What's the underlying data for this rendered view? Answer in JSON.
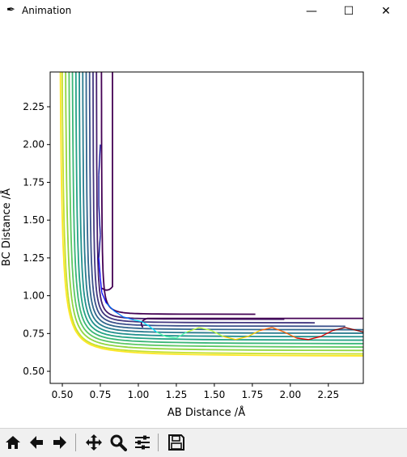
{
  "window": {
    "title": "Animation"
  },
  "titlebar": {
    "minimize_glyph": "—",
    "maximize_glyph": "☐",
    "close_glyph": "✕"
  },
  "toolbar": {
    "buttons": [
      {
        "name": "home-icon"
      },
      {
        "name": "back-arrow-icon"
      },
      {
        "name": "forward-arrow-icon"
      },
      {
        "name": "pan-icon"
      },
      {
        "name": "zoom-icon"
      },
      {
        "name": "subplots-configure-icon"
      },
      {
        "name": "save-icon"
      }
    ]
  },
  "chart_data": {
    "type": "contour",
    "xlabel": "AB Distance /Å",
    "ylabel": "BC Distance /Å",
    "xlim": [
      0.42,
      2.48
    ],
    "ylim": [
      0.42,
      2.48
    ],
    "x_ticks": [
      0.5,
      0.75,
      1.0,
      1.25,
      1.5,
      1.75,
      2.0,
      2.25
    ],
    "x_tick_labels": [
      "0.50",
      "0.75",
      "1.00",
      "1.25",
      "1.50",
      "1.75",
      "2.00",
      "2.25"
    ],
    "y_ticks": [
      0.5,
      0.75,
      1.0,
      1.25,
      1.5,
      1.75,
      2.0,
      2.25
    ],
    "y_tick_labels": [
      "0.50",
      "0.75",
      "1.00",
      "1.25",
      "1.50",
      "1.75",
      "2.00",
      "2.25"
    ],
    "colormap": "viridis",
    "contour_asymptotes_y": [
      0.85,
      0.81,
      0.78,
      0.75,
      0.72,
      0.69,
      0.66,
      0.63,
      0.6,
      0.57,
      0.54,
      0.51,
      0.49
    ],
    "trajectory": {
      "colormap": "jet",
      "x": [
        0.75,
        0.74,
        0.74,
        0.75,
        0.74,
        0.75,
        0.76,
        0.79,
        0.84,
        0.9,
        0.97,
        1.02,
        1.07,
        1.12,
        1.18,
        1.25,
        1.32,
        1.4,
        1.48,
        1.56,
        1.64,
        1.72,
        1.8,
        1.88,
        1.96,
        2.04,
        2.12,
        2.2,
        2.28,
        2.36,
        2.44,
        2.48
      ],
      "y": [
        2.0,
        1.8,
        1.6,
        1.4,
        1.25,
        1.12,
        1.02,
        0.95,
        0.9,
        0.86,
        0.84,
        0.83,
        0.8,
        0.76,
        0.73,
        0.72,
        0.76,
        0.79,
        0.77,
        0.73,
        0.71,
        0.73,
        0.77,
        0.79,
        0.76,
        0.72,
        0.71,
        0.73,
        0.77,
        0.79,
        0.77,
        0.76
      ]
    }
  }
}
